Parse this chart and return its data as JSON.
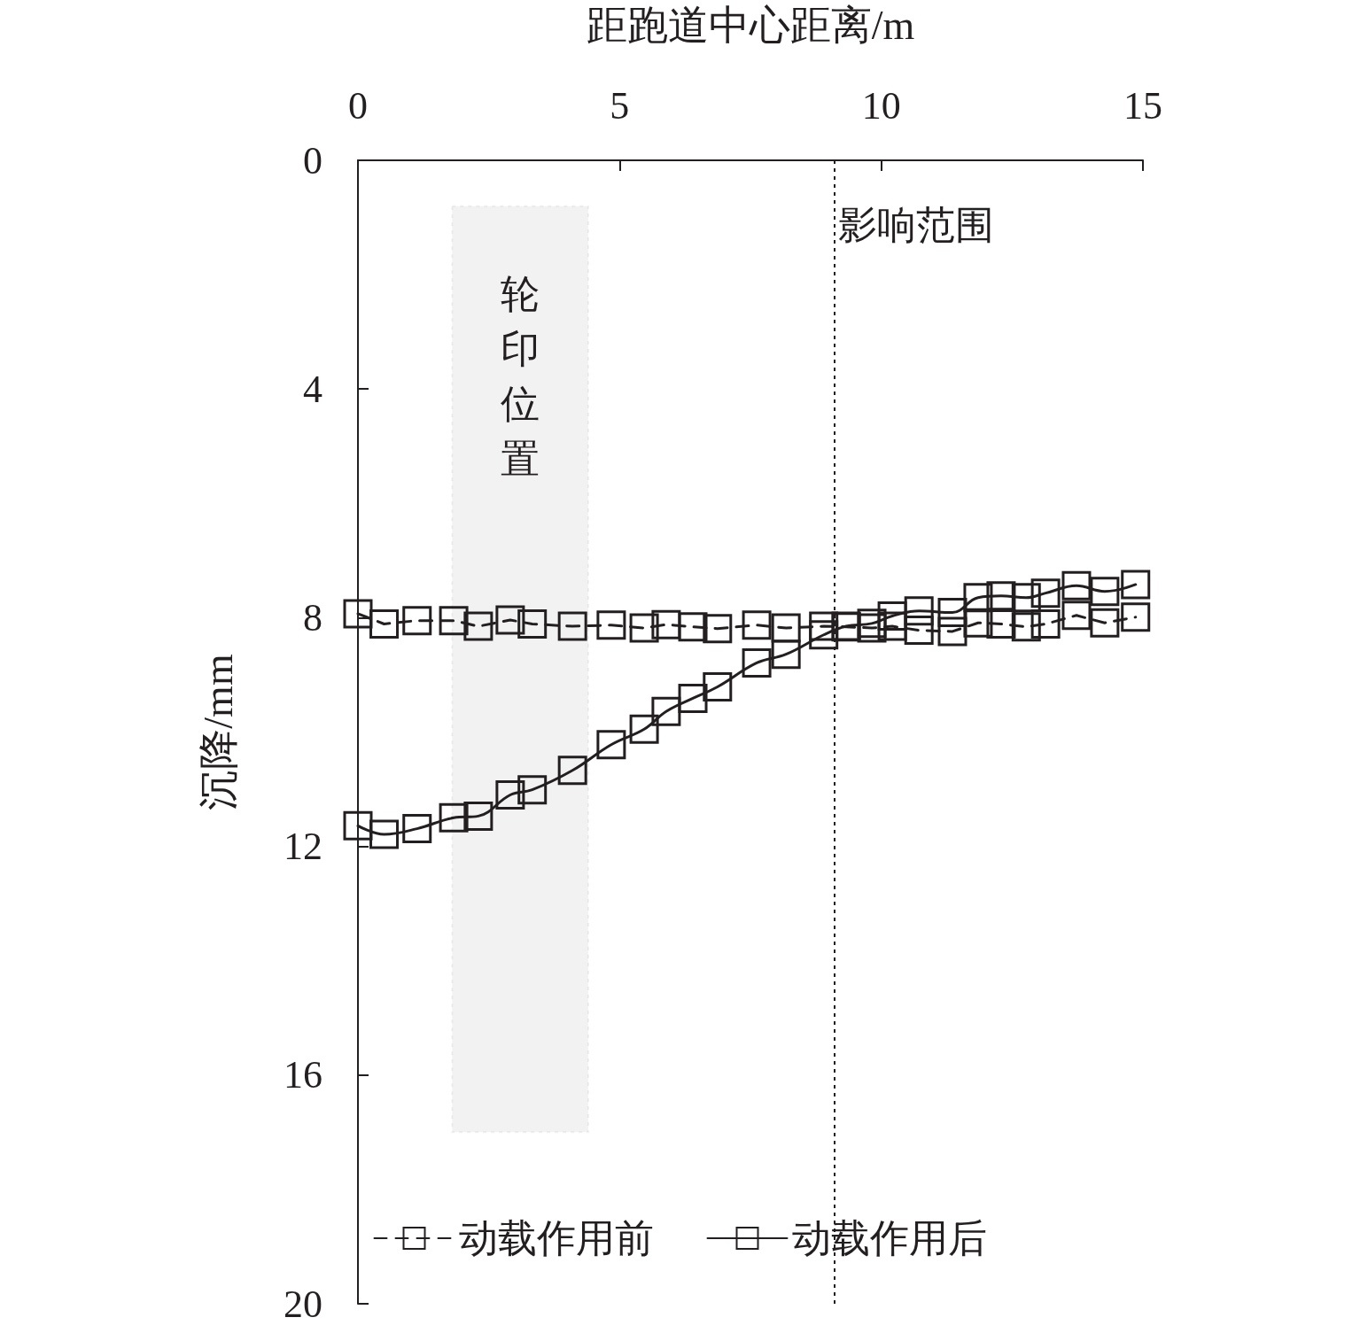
{
  "chart_data": {
    "type": "line",
    "xlabel": "距跑道中心距离/m",
    "ylabel": "沉降/mm",
    "xlim": [
      0,
      15
    ],
    "xticks": [
      0,
      5,
      10,
      15
    ],
    "ylim": [
      20,
      0
    ],
    "yticks": [
      0,
      4,
      8,
      12,
      16,
      20
    ],
    "x": [
      0,
      0.5,
      1.13,
      1.83,
      2.3,
      2.91,
      3.33,
      4.1,
      4.84,
      5.47,
      5.89,
      6.4,
      6.87,
      7.62,
      8.18,
      8.9,
      9.33,
      9.82,
      10.21,
      10.72,
      11.36,
      11.85,
      12.29,
      12.77,
      13.14,
      13.73,
      14.27,
      14.86
    ],
    "series": [
      {
        "name": "动载作用前",
        "color": "#231f20",
        "line_style": "dashed",
        "values": [
          7.93,
          8.11,
          8.05,
          8.05,
          8.15,
          8.04,
          8.11,
          8.15,
          8.13,
          8.18,
          8.12,
          8.16,
          8.19,
          8.13,
          8.18,
          8.15,
          8.16,
          8.18,
          8.15,
          8.22,
          8.24,
          8.09,
          8.11,
          8.16,
          8.11,
          7.96,
          8.09,
          7.99
        ]
      },
      {
        "name": "动载作用后",
        "color": "#231f20",
        "line_style": "solid",
        "values": [
          11.64,
          11.79,
          11.69,
          11.5,
          11.47,
          11.1,
          11.01,
          10.67,
          10.22,
          9.95,
          9.64,
          9.41,
          9.21,
          8.79,
          8.64,
          8.3,
          8.15,
          8.1,
          7.97,
          7.88,
          7.91,
          7.65,
          7.62,
          7.65,
          7.57,
          7.44,
          7.54,
          7.42
        ]
      }
    ],
    "marker": "square",
    "grid": false,
    "legend": "bottom",
    "ref_lines": [
      {
        "axis": "x",
        "value": 9.1,
        "label": "影响范围",
        "line_style": "dotted",
        "color": "#231f20"
      }
    ],
    "bands": [
      {
        "axis": "x",
        "from": 1.8,
        "to": 4.4,
        "label": "轮印位置",
        "color": "#231f20"
      }
    ]
  }
}
